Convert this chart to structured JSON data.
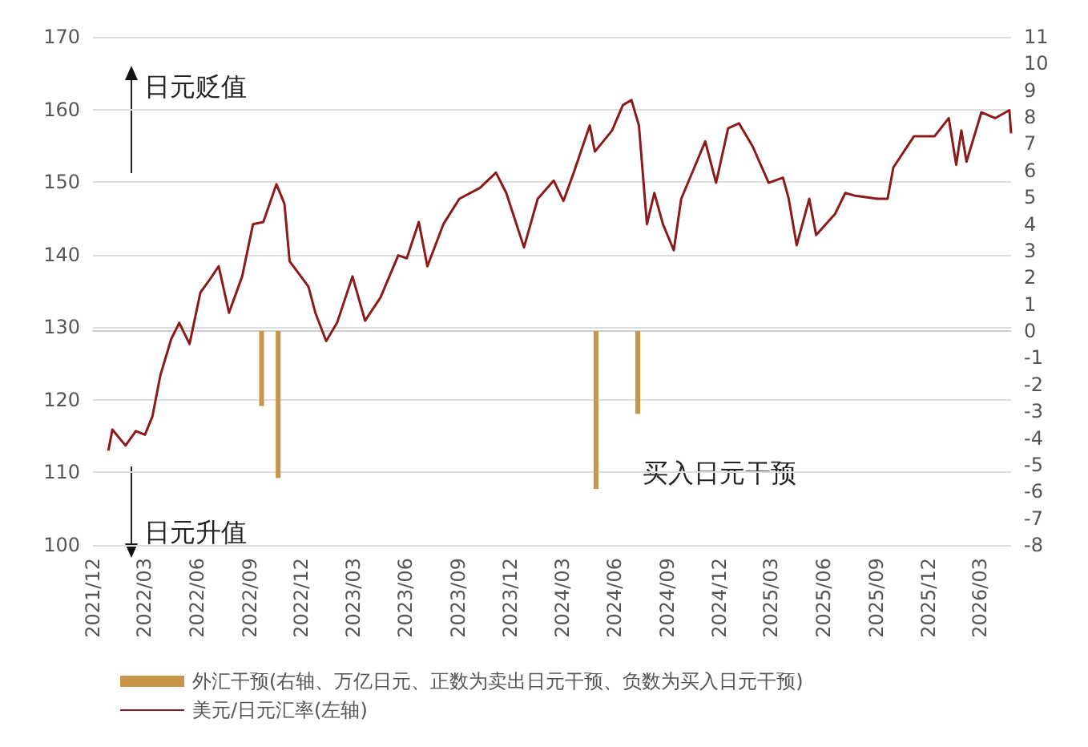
{
  "chart_data": {
    "type": "line",
    "xlim": [
      "2021-12",
      "2026-04-25"
    ],
    "xticks": [
      {
        "value": "2021-12",
        "label": "2021/12"
      },
      {
        "value": "2022-03",
        "label": "2022/03"
      },
      {
        "value": "2022-06",
        "label": "2022/06"
      },
      {
        "value": "2022-09",
        "label": "2022/09"
      },
      {
        "value": "2022-12",
        "label": "2022/12"
      },
      {
        "value": "2023-03",
        "label": "2023/03"
      },
      {
        "value": "2023-06",
        "label": "2023/06"
      },
      {
        "value": "2023-09",
        "label": "2023/09"
      },
      {
        "value": "2023-12",
        "label": "2023/12"
      },
      {
        "value": "2024-03",
        "label": "2024/03"
      },
      {
        "value": "2024-06",
        "label": "2024/06"
      },
      {
        "value": "2024-09",
        "label": "2024/09"
      },
      {
        "value": "2024-12",
        "label": "2024/12"
      },
      {
        "value": "2025-03",
        "label": "2025/03"
      },
      {
        "value": "2025-06",
        "label": "2025/06"
      },
      {
        "value": "2025-09",
        "label": "2025/09"
      },
      {
        "value": "2025-12",
        "label": "2025/12"
      },
      {
        "value": "2026-03",
        "label": "2026/03"
      }
    ],
    "ylim": [
      100,
      170
    ],
    "yticks": [
      100,
      110,
      120,
      130,
      140,
      150,
      160,
      170
    ],
    "y2lim": [
      -8,
      11
    ],
    "y2ticks": [
      -8,
      -7,
      -6,
      -5,
      -4,
      -3,
      -2,
      -1,
      0,
      1,
      2,
      3,
      4,
      5,
      6,
      7,
      8,
      9,
      10,
      11
    ],
    "grid": "y",
    "legend": "bottom",
    "marker": "none",
    "line_style": "solid",
    "annotations": [
      "日元贬值",
      "日元升值",
      "买入日元干预"
    ],
    "series": [
      {
        "name": "外汇干预(右轴、万亿日元、正数为卖出日元干预、负数为买入日元干预)",
        "type": "bar",
        "axis": "y2",
        "color": "#c8954a",
        "x": [
          "2022-09-22",
          "2022-10-21",
          "2024-04-29",
          "2024-07-11"
        ],
        "values": [
          -2.8,
          -5.5,
          -5.9,
          -3.1
        ]
      },
      {
        "name": "美元/日元汇率(左轴)",
        "color": "#8b1a1a",
        "x": [
          "2021-12-28",
          "2022-01-04",
          "2022-01-27",
          "2022-02-14",
          "2022-03-02",
          "2022-03-15",
          "2022-03-29",
          "2022-04-17",
          "2022-05-01",
          "2022-05-19",
          "2022-06-07",
          "2022-06-21",
          "2022-07-09",
          "2022-07-27",
          "2022-08-19",
          "2022-09-07",
          "2022-09-25",
          "2022-10-18",
          "2022-11-01",
          "2022-11-10",
          "2022-12-13",
          "2022-12-25",
          "2023-01-13",
          "2023-02-01",
          "2023-02-28",
          "2023-03-22",
          "2023-04-18",
          "2023-05-19",
          "2023-06-03",
          "2023-06-24",
          "2023-07-09",
          "2023-08-06",
          "2023-09-03",
          "2023-10-09",
          "2023-11-06",
          "2023-11-24",
          "2023-12-25",
          "2024-01-18",
          "2024-02-15",
          "2024-03-03",
          "2024-03-21",
          "2024-04-18",
          "2024-04-27",
          "2024-05-27",
          "2024-06-15",
          "2024-06-30",
          "2024-07-13",
          "2024-07-27",
          "2024-08-09",
          "2024-08-24",
          "2024-09-12",
          "2024-09-25",
          "2024-10-18",
          "2024-11-06",
          "2024-11-25",
          "2024-12-16",
          "2025-01-04",
          "2025-01-28",
          "2025-02-25",
          "2025-03-22",
          "2025-04-01",
          "2025-04-15",
          "2025-05-07",
          "2025-05-19",
          "2025-06-21",
          "2025-07-09",
          "2025-07-27",
          "2025-09-03",
          "2025-09-21",
          "2025-10-01",
          "2025-11-06",
          "2025-11-24",
          "2025-12-12",
          "2026-01-06",
          "2026-01-19",
          "2026-01-28",
          "2026-02-06",
          "2026-03-04",
          "2026-03-28",
          "2026-04-22",
          "2026-04-25"
        ],
        "values": [
          113.0,
          115.9,
          113.7,
          115.7,
          115.2,
          117.7,
          123.4,
          128.4,
          130.6,
          127.7,
          134.8,
          136.3,
          138.4,
          132.0,
          137.0,
          144.2,
          144.5,
          149.7,
          147.0,
          139.1,
          135.6,
          132.0,
          128.1,
          130.6,
          137.0,
          130.9,
          134.1,
          139.9,
          139.5,
          144.5,
          138.4,
          144.2,
          147.7,
          149.2,
          151.3,
          148.5,
          141.0,
          147.7,
          150.2,
          147.4,
          151.3,
          157.8,
          154.2,
          157.1,
          160.6,
          161.3,
          157.8,
          144.2,
          148.5,
          144.2,
          140.6,
          147.7,
          152.0,
          155.6,
          149.9,
          157.4,
          158.1,
          154.9,
          149.9,
          150.6,
          147.7,
          141.3,
          147.7,
          142.7,
          145.6,
          148.5,
          148.1,
          147.7,
          147.7,
          152.0,
          156.3,
          156.3,
          156.3,
          158.8,
          152.4,
          157.1,
          152.8,
          159.6,
          158.8,
          159.9,
          156.7
        ]
      }
    ]
  }
}
